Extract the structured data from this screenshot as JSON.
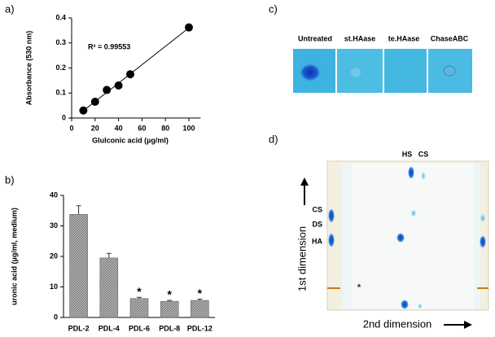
{
  "chart_data": [
    {
      "type": "scatter",
      "x_label": "Glulconic acid (µg/ml)",
      "y_label": "Absorbance (530 nm)",
      "annotation": "R² = 0.99553",
      "x": [
        10,
        20,
        30,
        40,
        50,
        100
      ],
      "values": [
        0.03,
        0.065,
        0.112,
        0.13,
        0.175,
        0.362
      ],
      "color": "#000000",
      "trendline": "linear",
      "xlim": [
        0,
        110
      ],
      "xticks": [
        0,
        20,
        40,
        60,
        80,
        100
      ],
      "ylim": [
        0,
        0.4
      ],
      "yticks": [
        0,
        0.1,
        0.2,
        0.3,
        0.4
      ]
    },
    {
      "type": "bar",
      "y_label": "uronic acid (µg/ml, medium)",
      "categories": [
        "PDL-2",
        "PDL-4",
        "PDL-6",
        "PDL-8",
        "PDL-12"
      ],
      "values": [
        33.8,
        19.5,
        6.2,
        5.3,
        5.6
      ],
      "errors": [
        2.8,
        1.5,
        0.4,
        0.3,
        0.4
      ],
      "annotations": [
        null,
        null,
        "*",
        "*",
        "*"
      ],
      "color": "#9a9a9a",
      "ylim": [
        0,
        40
      ],
      "yticks": [
        0,
        10,
        20,
        30,
        40
      ]
    }
  ],
  "panel_labels": [
    "a)",
    "b)",
    "c)",
    "d)"
  ],
  "dot_blot": {
    "labels": [
      "Untreated",
      "st.HAase",
      "te.HAase",
      "ChaseABC"
    ]
  },
  "tlc": {
    "top_labels": [
      "HS",
      "CS"
    ],
    "side_labels": [
      "CS",
      "DS",
      "HA"
    ],
    "marker": "*",
    "y_axis_label": "1st dimension",
    "x_axis_label": "2nd dimension"
  }
}
